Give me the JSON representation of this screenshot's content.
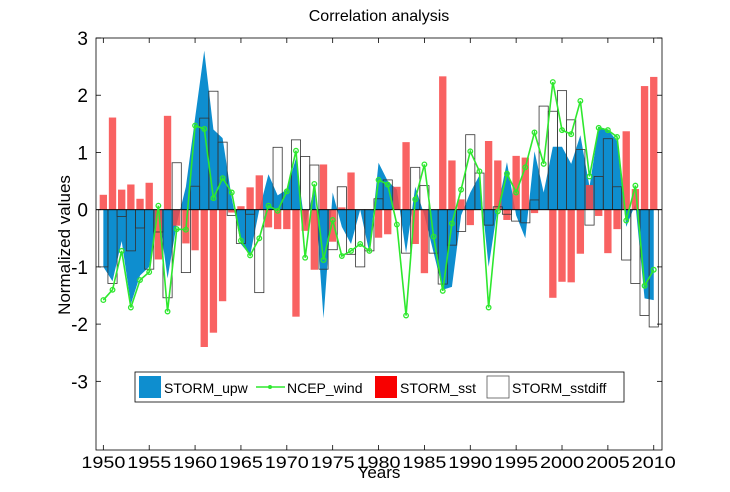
{
  "chart_data": {
    "type": "bar",
    "title": "Correlation analysis",
    "xlabel": "Years",
    "ylabel": "Normalized values",
    "xlim": [
      1949.2,
      2010.9
    ],
    "ylim": [
      -4.2,
      3
    ],
    "xticks": [
      1950,
      1955,
      1960,
      1965,
      1970,
      1975,
      1980,
      1985,
      1990,
      1995,
      2000,
      2005,
      2010
    ],
    "yticks": [
      -3,
      -2,
      -1,
      0,
      1,
      2,
      3
    ],
    "grid": false,
    "legend_position": "bottom-center",
    "x": [
      1950,
      1951,
      1952,
      1953,
      1954,
      1955,
      1956,
      1957,
      1958,
      1959,
      1960,
      1961,
      1962,
      1963,
      1964,
      1965,
      1966,
      1967,
      1968,
      1969,
      1970,
      1971,
      1972,
      1973,
      1974,
      1975,
      1976,
      1977,
      1978,
      1979,
      1980,
      1981,
      1982,
      1983,
      1984,
      1985,
      1986,
      1987,
      1988,
      1989,
      1990,
      1991,
      1992,
      1993,
      1994,
      1995,
      1996,
      1997,
      1998,
      1999,
      2000,
      2001,
      2002,
      2003,
      2004,
      2005,
      2006,
      2007,
      2008,
      2009,
      2010
    ],
    "series": [
      {
        "name": "STORM_upw",
        "kind": "area",
        "color": "#0e8ecf",
        "values": [
          -1.0,
          -1.25,
          -0.55,
          -1.65,
          -1.15,
          -1.0,
          0.0,
          -1.2,
          -0.25,
          0.4,
          1.6,
          2.78,
          1.4,
          1.25,
          0.2,
          -0.6,
          -0.8,
          0.0,
          0.62,
          0.25,
          0.35,
          0.9,
          -0.3,
          0.4,
          -1.9,
          0.3,
          -0.3,
          -0.6,
          0.0,
          -0.75,
          0.82,
          0.5,
          0.35,
          -0.76,
          0.4,
          -0.1,
          -0.75,
          -1.4,
          -1.35,
          -0.1,
          0.3,
          0.6,
          -1.0,
          0.05,
          0.83,
          -0.1,
          -0.5,
          1.02,
          0.3,
          1.1,
          1.1,
          0.8,
          1.3,
          0.4,
          1.45,
          1.4,
          1.2,
          -0.3,
          0.1,
          -1.55,
          -1.58
        ]
      },
      {
        "name": "NCEP_wind",
        "kind": "line",
        "color": "#2ee82e",
        "values": [
          -1.58,
          -1.4,
          -0.72,
          -1.71,
          -1.23,
          -1.09,
          0.07,
          -1.78,
          -0.34,
          -0.35,
          1.47,
          1.41,
          0.2,
          0.55,
          0.3,
          -0.54,
          -0.8,
          -0.5,
          0.07,
          -0.02,
          0.32,
          1.03,
          -0.84,
          0.45,
          -0.88,
          -0.18,
          -0.81,
          -0.72,
          -0.6,
          -0.72,
          0.52,
          0.44,
          -0.26,
          -1.85,
          0.18,
          0.79,
          -0.47,
          -1.42,
          -0.24,
          0.35,
          1.02,
          0.67,
          -1.71,
          -0.03,
          0.63,
          0.3,
          0.74,
          1.35,
          0.8,
          2.23,
          1.39,
          1.32,
          1.9,
          0.58,
          1.43,
          1.39,
          1.27,
          -0.19,
          0.42,
          -1.33,
          -1.05
        ]
      },
      {
        "name": "STORM_sst",
        "kind": "bar",
        "color": "#f84646",
        "values": [
          0.26,
          1.61,
          0.35,
          0.44,
          0.19,
          0.47,
          -0.87,
          1.64,
          -0.28,
          -0.59,
          -0.71,
          -2.4,
          -2.15,
          -1.6,
          -0.05,
          0.06,
          0.39,
          0.6,
          -0.31,
          -0.34,
          -0.34,
          -1.87,
          -0.37,
          -1.05,
          0.79,
          -0.56,
          0.04,
          0.65,
          0.0,
          0.0,
          -0.49,
          -0.43,
          0.4,
          1.18,
          -0.6,
          -1.11,
          0.0,
          2.33,
          0.86,
          0.18,
          -0.27,
          0.0,
          1.2,
          0.86,
          -0.18,
          0.94,
          0.91,
          -0.06,
          0.0,
          -1.54,
          -1.26,
          -1.27,
          -0.77,
          0.43,
          -0.11,
          -0.76,
          -0.34,
          1.37,
          0.36,
          2.16,
          2.32
        ]
      },
      {
        "name": "STORM_sstdiff",
        "kind": "outline-bar",
        "color": "#000000",
        "values": [
          -1.0,
          -1.29,
          -0.12,
          -0.72,
          -0.32,
          -1.04,
          -0.39,
          -1.54,
          0.82,
          -1.1,
          0.41,
          1.6,
          2.07,
          1.18,
          -0.1,
          -0.59,
          -0.08,
          -1.45,
          0.0,
          1.09,
          0.0,
          1.22,
          0.93,
          0.78,
          -1.04,
          -0.7,
          0.4,
          -0.78,
          -1.0,
          -0.72,
          0.19,
          0.52,
          0.0,
          -0.76,
          0.74,
          0.42,
          -0.76,
          -1.3,
          -0.62,
          -0.38,
          1.31,
          0.64,
          -0.27,
          0.05,
          -0.08,
          -0.2,
          -0.23,
          0.17,
          1.81,
          1.72,
          2.08,
          1.57,
          1.05,
          -0.27,
          0.58,
          1.24,
          0.4,
          -0.88,
          -1.29,
          -1.85,
          -2.05
        ]
      }
    ]
  }
}
